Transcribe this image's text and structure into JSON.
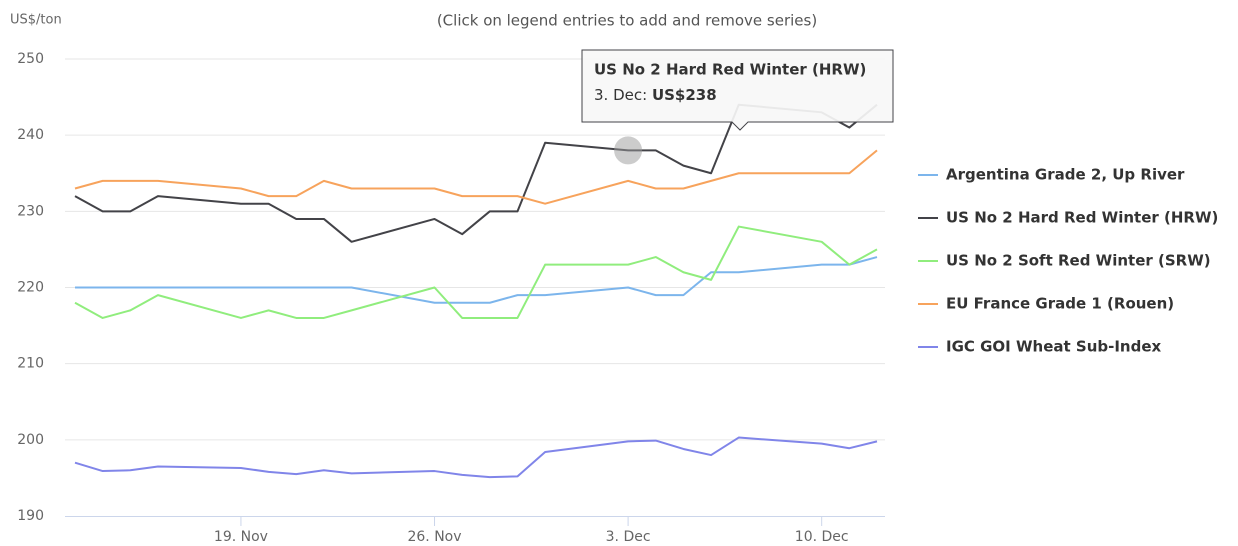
{
  "chart_data": {
    "type": "line",
    "subtitle": "(Click on legend entries to add and remove series)",
    "y_axis_label": "US$/ton",
    "x": [
      "13 Nov",
      "14 Nov",
      "15 Nov",
      "16 Nov",
      "19 Nov",
      "20 Nov",
      "21 Nov",
      "22 Nov",
      "23 Nov",
      "26 Nov",
      "27 Nov",
      "28 Nov",
      "29 Nov",
      "30 Nov",
      "3 Dec",
      "4 Dec",
      "5 Dec",
      "6 Dec",
      "7 Dec",
      "10 Dec",
      "11 Dec",
      "12 Dec"
    ],
    "xlim": [
      "13 Nov",
      "12 Dec"
    ],
    "xticks": [
      {
        "value": "19 Nov",
        "label": "19. Nov"
      },
      {
        "value": "26 Nov",
        "label": "26. Nov"
      },
      {
        "value": "3 Dec",
        "label": "3. Dec"
      },
      {
        "value": "10 Dec",
        "label": "10. Dec"
      }
    ],
    "ylim": [
      190,
      250
    ],
    "yticks": [
      190,
      200,
      210,
      220,
      230,
      240,
      250
    ],
    "grid": true,
    "legend": "right",
    "series": [
      {
        "name": "Argentina Grade 2, Up River",
        "color": "#7cb5ec",
        "values": [
          220,
          220,
          220,
          220,
          220,
          220,
          220,
          220,
          220,
          218,
          218,
          218,
          219,
          219,
          220,
          219,
          219,
          222,
          222,
          223,
          223,
          224
        ]
      },
      {
        "name": "US No 2 Hard Red Winter (HRW)",
        "color": "#434348",
        "values": [
          232,
          230,
          230,
          232,
          231,
          231,
          229,
          229,
          226,
          229,
          227,
          230,
          230,
          239,
          238,
          238,
          236,
          235,
          244,
          243,
          241,
          244
        ]
      },
      {
        "name": "US No 2 Soft Red Winter (SRW)",
        "color": "#90ed7d",
        "values": [
          218,
          216,
          217,
          219,
          216,
          217,
          216,
          216,
          217,
          220,
          216,
          216,
          216,
          223,
          223,
          224,
          222,
          221,
          228,
          226,
          223,
          225
        ]
      },
      {
        "name": "EU France Grade 1 (Rouen)",
        "color": "#f7a35c",
        "values": [
          233,
          234,
          234,
          234,
          233,
          232,
          232,
          234,
          233,
          233,
          232,
          232,
          232,
          231,
          234,
          233,
          233,
          234,
          235,
          235,
          235,
          238
        ]
      },
      {
        "name": "IGC GOI Wheat Sub-Index",
        "color": "#8085e9",
        "values": [
          197,
          195.9,
          196,
          196.5,
          196.3,
          195.8,
          195.5,
          196,
          195.6,
          195.9,
          195.4,
          195.1,
          195.2,
          198.4,
          199.8,
          199.9,
          198.8,
          198,
          200.3,
          199.5,
          198.9,
          199.8
        ]
      }
    ],
    "tooltip": {
      "series": 1,
      "point": 14,
      "value_label": "US$238"
    }
  }
}
